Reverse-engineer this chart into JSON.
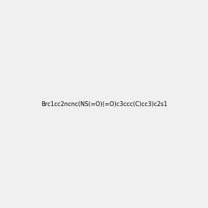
{
  "smiles": "Brc1cc2ncnc(NS(=O)(=O)c3ccc(C)cc3)c2s1",
  "img_size": [
    300,
    300
  ],
  "background_color": "#f0f0f0",
  "title": "",
  "dpi": 100
}
